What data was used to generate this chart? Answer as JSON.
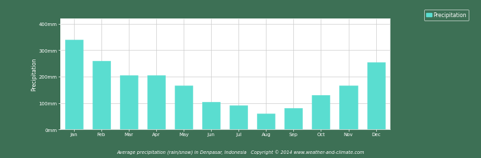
{
  "months": [
    "Jan",
    "Feb",
    "Mar",
    "Apr",
    "May",
    "Jun",
    "Jul",
    "Aug",
    "Sep",
    "Oct",
    "Nov",
    "Dec"
  ],
  "precipitation": [
    340,
    260,
    205,
    205,
    165,
    105,
    90,
    60,
    80,
    130,
    165,
    255
  ],
  "bar_color": "#5addd0",
  "bar_edge_color": "#5addd0",
  "background_color": "#3d7055",
  "plot_bg_color": "#ffffff",
  "grid_color": "#cccccc",
  "ylabel": "Precipitation",
  "yticks": [
    0,
    100,
    200,
    300,
    400
  ],
  "ytick_labels": [
    "0mm",
    "100mm",
    "200mm",
    "300mm",
    "400mm"
  ],
  "ylim": [
    0,
    420
  ],
  "legend_label": "Precipitation",
  "legend_color": "#5addd0",
  "footer_text": "Average precipitation (rain/snow) in Denpasar, Indonesia   Copyright © 2014 www.weather-and-climate.com",
  "axis_label_fontsize": 5.5,
  "tick_fontsize": 5.0,
  "footer_fontsize": 4.8,
  "legend_fontsize": 5.5
}
